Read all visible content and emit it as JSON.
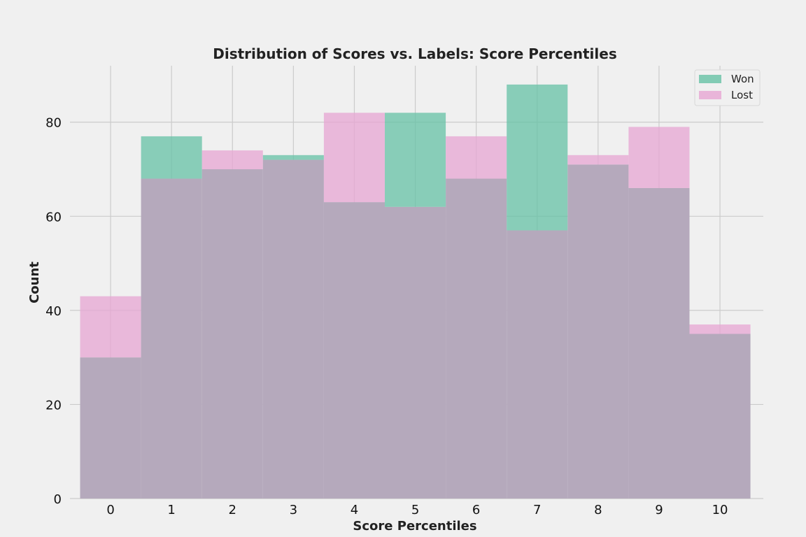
{
  "chart_data": {
    "type": "bar",
    "title": "Distribution of Scores vs. Labels: Score Percentiles",
    "xlabel": "Score Percentiles",
    "ylabel": "Count",
    "categories": [
      "0",
      "1",
      "2",
      "3",
      "4",
      "5",
      "6",
      "7",
      "8",
      "9",
      "10"
    ],
    "ylim": [
      0,
      92
    ],
    "yticks": [
      0,
      20,
      40,
      60,
      80
    ],
    "grid": true,
    "legend_position": "top-right",
    "series": [
      {
        "name": "Won",
        "color": "#66c2a5",
        "values": [
          30,
          77,
          70,
          73,
          63,
          82,
          68,
          88,
          71,
          66,
          35
        ]
      },
      {
        "name": "Lost",
        "color": "#e7a6d3",
        "values": [
          43,
          68,
          74,
          72,
          82,
          62,
          77,
          57,
          73,
          79,
          37
        ]
      }
    ],
    "overlap_color": "#b5a9bc",
    "background": "#f0f0f0",
    "grid_color": "#cbcbcb"
  }
}
